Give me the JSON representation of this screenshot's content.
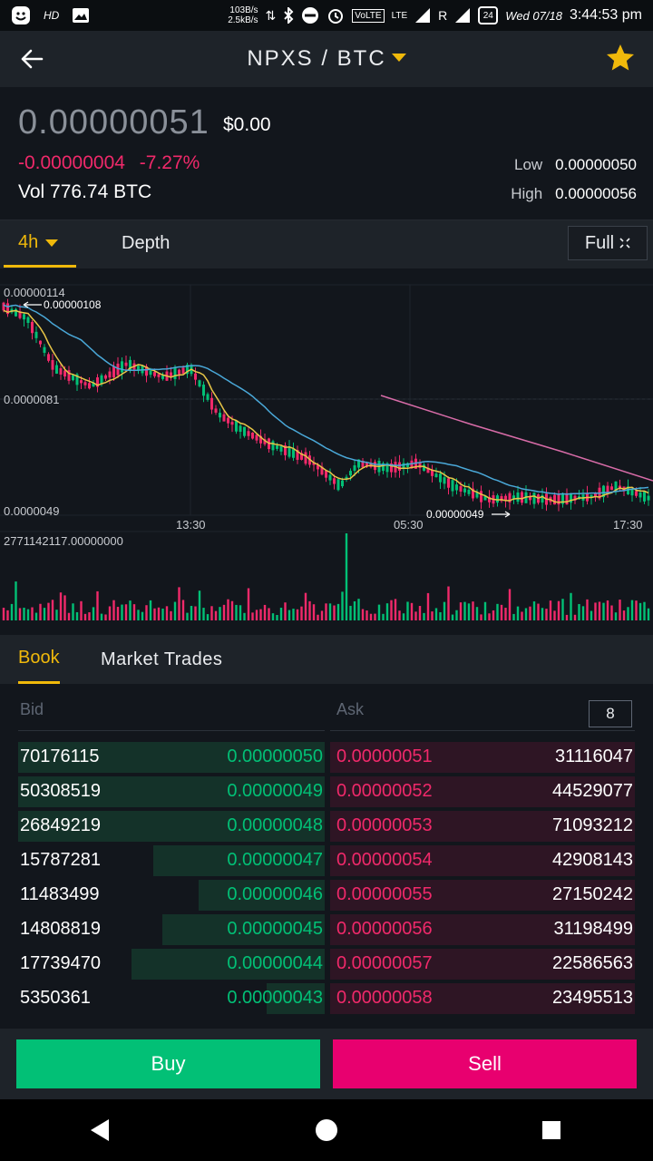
{
  "statusbar": {
    "hd": "HD",
    "speed_up": "103B/s",
    "speed_down": "2.5kB/s",
    "volte": "VoLTE",
    "lte": "LTE",
    "roaming": "R",
    "battery": "24",
    "date": "Wed 07/18",
    "time": "3:44:53 pm"
  },
  "header": {
    "pair": "NPXS / BTC"
  },
  "ticker": {
    "price": "0.00000051",
    "usd": "$0.00",
    "change_abs": "-0.00000004",
    "change_pct": "-7.27%",
    "vol_label": "Vol",
    "volume": "776.74 BTC",
    "low_label": "Low",
    "low": "0.00000050",
    "high_label": "High",
    "high": "0.00000056"
  },
  "chart_tabs": {
    "interval": "4h",
    "depth": "Depth",
    "full": "Full"
  },
  "chart_data": {
    "type": "candlestick",
    "y_labels": [
      "0.00000114",
      "0.0000081",
      "0.0000049"
    ],
    "x_labels": [
      "13:30",
      "05:30",
      "17:30"
    ],
    "max_marker": "0.00000108",
    "min_marker": "0.00000049",
    "volume_max_label": "2771142117.00000000"
  },
  "book_tabs": {
    "book": "Book",
    "trades": "Market Trades"
  },
  "book": {
    "bid_label": "Bid",
    "ask_label": "Ask",
    "depth": "8",
    "rows": [
      {
        "bid_qty": "70176115",
        "bid_price": "0.00000050",
        "ask_price": "0.00000051",
        "ask_qty": "31116047",
        "bid_fill": 1.0,
        "ask_fill": 1.0
      },
      {
        "bid_qty": "50308519",
        "bid_price": "0.00000049",
        "ask_price": "0.00000052",
        "ask_qty": "44529077",
        "bid_fill": 1.0,
        "ask_fill": 1.0
      },
      {
        "bid_qty": "26849219",
        "bid_price": "0.00000048",
        "ask_price": "0.00000053",
        "ask_qty": "71093212",
        "bid_fill": 1.0,
        "ask_fill": 1.0
      },
      {
        "bid_qty": "15787281",
        "bid_price": "0.00000047",
        "ask_price": "0.00000054",
        "ask_qty": "42908143",
        "bid_fill": 0.56,
        "ask_fill": 1.0
      },
      {
        "bid_qty": "11483499",
        "bid_price": "0.00000046",
        "ask_price": "0.00000055",
        "ask_qty": "27150242",
        "bid_fill": 0.41,
        "ask_fill": 1.0
      },
      {
        "bid_qty": "14808819",
        "bid_price": "0.00000045",
        "ask_price": "0.00000056",
        "ask_qty": "31198499",
        "bid_fill": 0.53,
        "ask_fill": 1.0
      },
      {
        "bid_qty": "17739470",
        "bid_price": "0.00000044",
        "ask_price": "0.00000057",
        "ask_qty": "22586563",
        "bid_fill": 0.63,
        "ask_fill": 1.0
      },
      {
        "bid_qty": "5350361",
        "bid_price": "0.00000043",
        "ask_price": "0.00000058",
        "ask_qty": "23495513",
        "bid_fill": 0.19,
        "ask_fill": 1.0
      }
    ]
  },
  "actions": {
    "buy": "Buy",
    "sell": "Sell"
  },
  "colors": {
    "accent": "#f0b90b",
    "buy": "#02c076",
    "sell": "#f0296a"
  }
}
